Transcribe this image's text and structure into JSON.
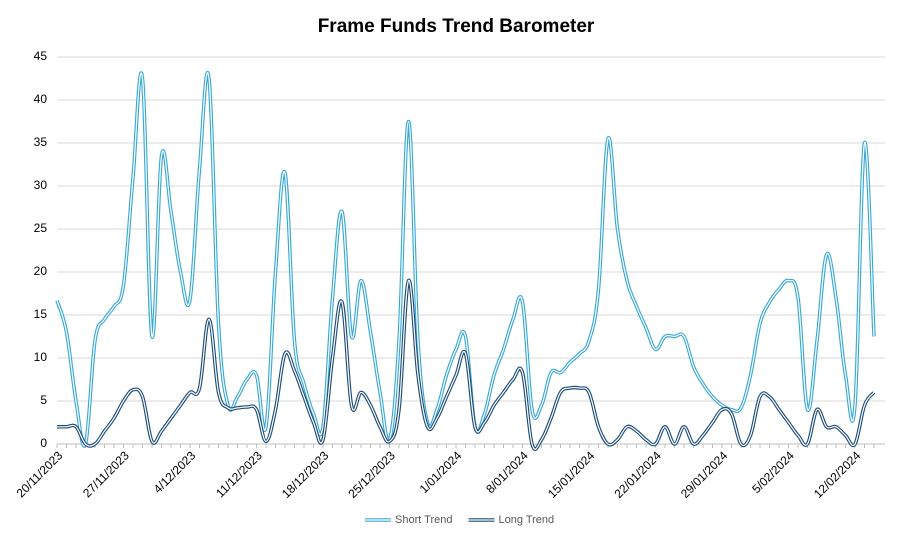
{
  "chart_data": {
    "type": "line",
    "title": "Frame Funds Trend Barometer",
    "categories": [
      "20/11/2023",
      null,
      null,
      null,
      null,
      null,
      null,
      "27/11/2023",
      null,
      null,
      null,
      null,
      null,
      null,
      "4/12/2023",
      null,
      null,
      null,
      null,
      null,
      null,
      "11/12/2023",
      null,
      null,
      null,
      null,
      null,
      null,
      "18/12/2023",
      null,
      null,
      null,
      null,
      null,
      null,
      "25/12/2023",
      null,
      null,
      null,
      null,
      null,
      null,
      "1/01/2024",
      null,
      null,
      null,
      null,
      null,
      null,
      "8/01/2024",
      null,
      null,
      null,
      null,
      null,
      null,
      "15/01/2024",
      null,
      null,
      null,
      null,
      null,
      null,
      "22/01/2024",
      null,
      null,
      null,
      null,
      null,
      null,
      "29/01/2024",
      null,
      null,
      null,
      null,
      null,
      null,
      "5/02/2024",
      null,
      null,
      null,
      null,
      null,
      null,
      "12/02/2024",
      null,
      null
    ],
    "series": [
      {
        "name": "Short Trend",
        "color": "#3aa9d6",
        "values": [
          16.7,
          13,
          5,
          0,
          12,
          14.5,
          16,
          18.5,
          31,
          42.5,
          12.5,
          33.5,
          27,
          20,
          16.8,
          32,
          42.5,
          14,
          4.5,
          5.5,
          7.5,
          8,
          2,
          20,
          31.5,
          12,
          7,
          3.5,
          2,
          17,
          27,
          12.5,
          19,
          13,
          6,
          0.5,
          12,
          37.5,
          12,
          2.5,
          4,
          8,
          11,
          12.5,
          2,
          3.5,
          8,
          11,
          14.5,
          16.5,
          4,
          4.5,
          8.3,
          8.3,
          9.5,
          10.5,
          12,
          18,
          35.5,
          25,
          19,
          16,
          13.5,
          11,
          12.5,
          12.5,
          12.5,
          9,
          7,
          5.5,
          4.5,
          4,
          4.2,
          8,
          14,
          16.5,
          18,
          19,
          17,
          4,
          12,
          22,
          17,
          8,
          4.5,
          35,
          12.5
        ]
      },
      {
        "name": "Long Trend",
        "color": "#1f4e79",
        "values": [
          2,
          2,
          2,
          0,
          0,
          1.5,
          3,
          5,
          6.3,
          5.5,
          0.3,
          1.5,
          3,
          4.5,
          6,
          6.5,
          14.5,
          6,
          4.2,
          4.2,
          4.3,
          4,
          0.3,
          4,
          10.5,
          8.5,
          5.5,
          2.5,
          0.5,
          10,
          16.5,
          4.5,
          6,
          4.5,
          2,
          0.3,
          4,
          19,
          8,
          2,
          3,
          5.5,
          8,
          10.5,
          2,
          2.5,
          4.5,
          6,
          7.5,
          8.3,
          0,
          0.5,
          3,
          6,
          6.5,
          6.5,
          6,
          2,
          0,
          0.5,
          2,
          1.5,
          0.5,
          0,
          2,
          0,
          2,
          0,
          1,
          2.5,
          4,
          3.5,
          0,
          1,
          5.5,
          5.5,
          4,
          2.5,
          1,
          0,
          4,
          2,
          2,
          1,
          0,
          4.5,
          6
        ]
      }
    ],
    "ylim": [
      0,
      45
    ],
    "yticks": [
      0,
      5,
      10,
      15,
      20,
      25,
      30,
      35,
      40,
      45
    ],
    "grid": true,
    "legend": "bottom"
  }
}
